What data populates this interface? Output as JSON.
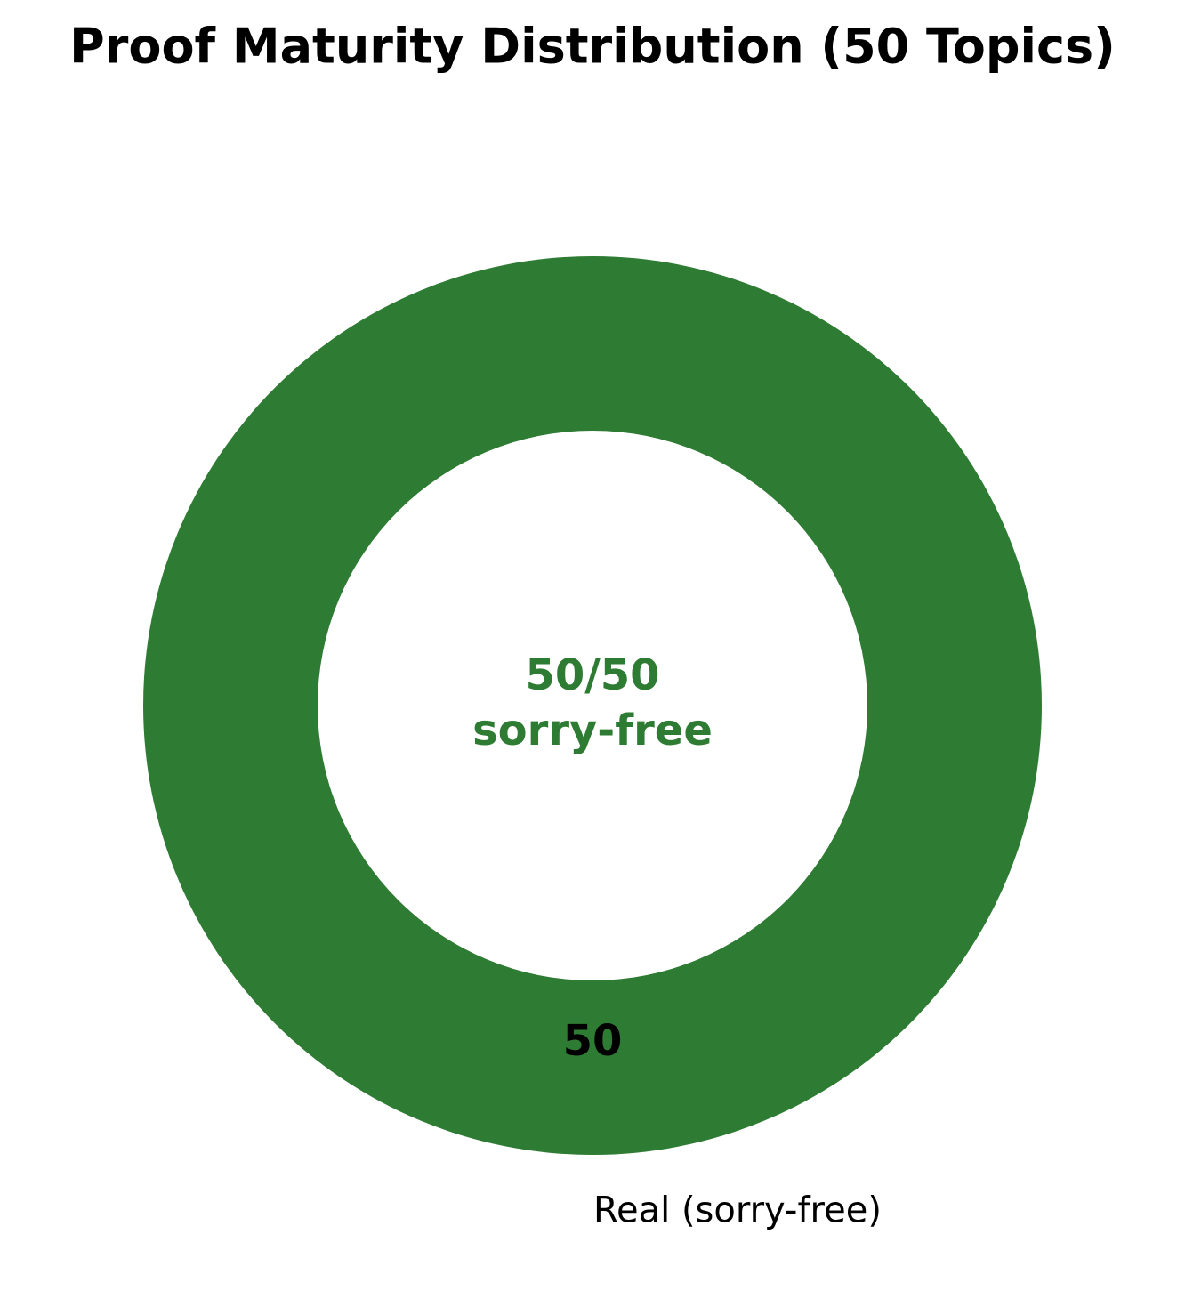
{
  "chart_data": {
    "type": "donut",
    "title": "Proof Maturity Distribution (50 Topics)",
    "categories": [
      "Real (sorry-free)"
    ],
    "values": [
      50
    ],
    "colors": [
      "#2e7b33"
    ],
    "center_label": [
      "50/50",
      "sorry-free"
    ],
    "center_label_color": "#2e7b33"
  }
}
